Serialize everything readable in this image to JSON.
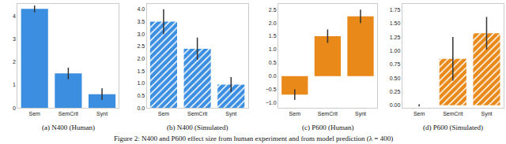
{
  "caption": "Figure 2: N400 and P600 effect size from human experiment and from model prediction (λ = 400)",
  "chart_data": [
    {
      "type": "bar",
      "title": "(a) N400 (Human)",
      "categories": [
        "Sem",
        "SemCrit",
        "Synt"
      ],
      "values": [
        4.3,
        1.5,
        0.6
      ],
      "errors": [
        0.15,
        0.25,
        0.25
      ],
      "color": "#3c8fe0",
      "marker": "solid",
      "ylim": [
        0,
        4.5
      ],
      "yticks": [
        0,
        1,
        2,
        3,
        4
      ],
      "grid": false
    },
    {
      "type": "bar",
      "title": "(b) N400 (Simulated)",
      "categories": [
        "Sem",
        "SemCrit",
        "Synt"
      ],
      "values": [
        3.5,
        2.4,
        0.95
      ],
      "errors": [
        0.5,
        0.45,
        0.3
      ],
      "color": "#3c8fe0",
      "marker": "hatch",
      "ylim": [
        0,
        4.2
      ],
      "yticks": [
        {
          "value": 0,
          "label": "0.0"
        },
        {
          "value": 0.5,
          "label": "0.5"
        },
        {
          "value": 1,
          "label": "1.0"
        },
        {
          "value": 1.5,
          "label": "1.5"
        },
        {
          "value": 2,
          "label": "2.0"
        },
        {
          "value": 2.5,
          "label": "2.5"
        },
        {
          "value": 3,
          "label": "3.0"
        },
        {
          "value": 3.5,
          "label": "3.5"
        },
        {
          "value": 4,
          "label": "4.0"
        }
      ],
      "grid": false
    },
    {
      "type": "bar",
      "title": "(c) P600 (Human)",
      "categories": [
        "Sem",
        "SemCrit",
        "Synt"
      ],
      "values": [
        -0.7,
        1.5,
        2.25
      ],
      "errors": [
        0.2,
        0.25,
        0.25
      ],
      "color": "#e8891a",
      "marker": "solid",
      "ylim": [
        -1.2,
        2.7
      ],
      "yticks": [
        {
          "value": -1,
          "label": "−1.0"
        },
        {
          "value": -0.5,
          "label": "−0.5"
        },
        {
          "value": 0,
          "label": "0.0"
        },
        {
          "value": 0.5,
          "label": "0.5"
        },
        {
          "value": 1,
          "label": "1.0"
        },
        {
          "value": 1.5,
          "label": "1.5"
        },
        {
          "value": 2,
          "label": "2.0"
        },
        {
          "value": 2.5,
          "label": "2.5"
        }
      ],
      "grid": false
    },
    {
      "type": "bar",
      "title": "(d) P600 (Simulated)",
      "categories": [
        "Sem",
        "SemCrit",
        "Synt"
      ],
      "values": [
        0.0,
        0.85,
        1.32
      ],
      "errors": [
        0.02,
        0.4,
        0.3
      ],
      "color": "#e8891a",
      "marker": "hatch",
      "ylim": [
        -0.05,
        1.85
      ],
      "yticks": [
        {
          "value": 0,
          "label": "0.00"
        },
        {
          "value": 0.25,
          "label": "0.25"
        },
        {
          "value": 0.5,
          "label": "0.50"
        },
        {
          "value": 0.75,
          "label": "0.75"
        },
        {
          "value": 1,
          "label": "1.00"
        },
        {
          "value": 1.25,
          "label": "1.25"
        },
        {
          "value": 1.5,
          "label": "1.50"
        },
        {
          "value": 1.75,
          "label": "1.75"
        }
      ],
      "grid": false
    }
  ]
}
